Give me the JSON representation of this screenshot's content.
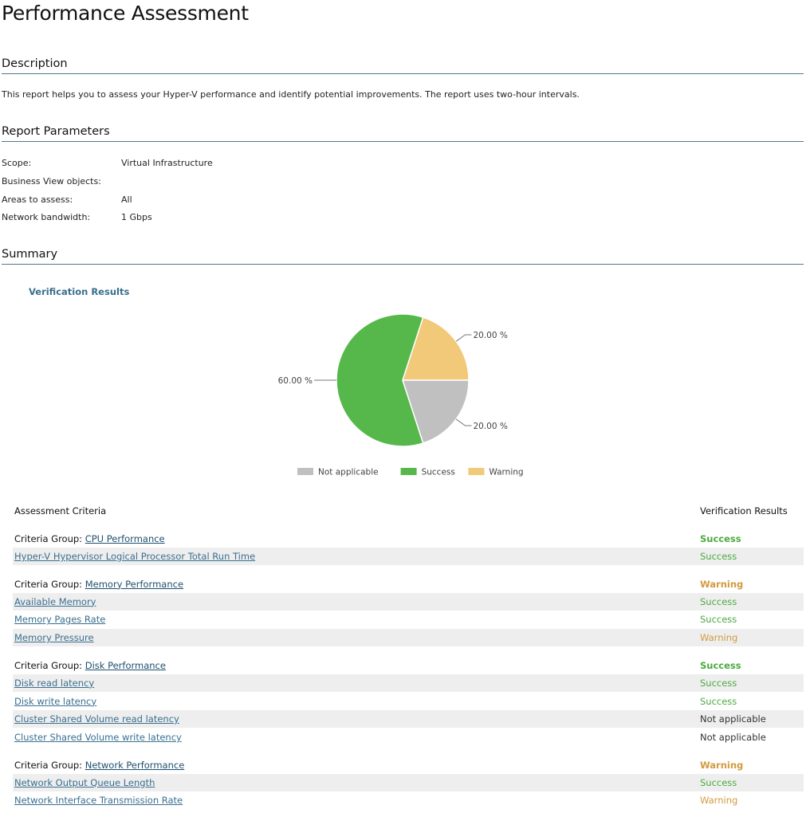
{
  "page_title": "Performance Assessment",
  "sections": {
    "description_title": "Description",
    "description_text": "This report helps you to assess your Hyper-V performance and identify potential improvements. The report uses two-hour intervals.",
    "params_title": "Report Parameters",
    "summary_title": "Summary"
  },
  "parameters": [
    {
      "label": "Scope:",
      "value": "Virtual Infrastructure"
    },
    {
      "label": "Business View objects:",
      "value": ""
    },
    {
      "label": "Areas to assess:",
      "value": "All"
    },
    {
      "label": "Network bandwidth:",
      "value": "1 Gbps"
    }
  ],
  "chart_data": {
    "type": "pie",
    "title": "Verification Results",
    "slices": [
      {
        "name": "Not applicable",
        "value": 20,
        "label": "20.00 %",
        "color": "#c0c0c0"
      },
      {
        "name": "Success",
        "value": 60,
        "label": "60.00 %",
        "color": "#56b84b"
      },
      {
        "name": "Warning",
        "value": 20,
        "label": "20.00 %",
        "color": "#f2c879"
      }
    ],
    "legend_position": "bottom"
  },
  "table": {
    "col_criteria": "Assessment Criteria",
    "col_results": "Verification Results",
    "group_prefix": "Criteria Group:",
    "groups": [
      {
        "name": "CPU Performance",
        "result": "Success",
        "status": "success",
        "items": [
          {
            "name": "Hyper-V Hypervisor Logical Processor Total Run Time",
            "result": "Success",
            "status": "success"
          }
        ]
      },
      {
        "name": "Memory Performance",
        "result": "Warning",
        "status": "warning",
        "items": [
          {
            "name": "Available Memory",
            "result": "Success",
            "status": "success"
          },
          {
            "name": "Memory Pages Rate",
            "result": "Success",
            "status": "success"
          },
          {
            "name": "Memory Pressure",
            "result": "Warning",
            "status": "warning"
          }
        ]
      },
      {
        "name": "Disk Performance",
        "result": "Success",
        "status": "success",
        "items": [
          {
            "name": "Disk read latency",
            "result": "Success",
            "status": "success"
          },
          {
            "name": "Disk write latency",
            "result": "Success",
            "status": "success"
          },
          {
            "name": "Cluster Shared Volume read latency",
            "result": "Not applicable",
            "status": "na"
          },
          {
            "name": "Cluster Shared Volume write latency",
            "result": "Not applicable",
            "status": "na"
          }
        ]
      },
      {
        "name": "Network Performance",
        "result": "Warning",
        "status": "warning",
        "items": [
          {
            "name": "Network Output Queue Length",
            "result": "Success",
            "status": "success"
          },
          {
            "name": "Network Interface Transmission Rate",
            "result": "Warning",
            "status": "warning"
          }
        ]
      }
    ]
  }
}
